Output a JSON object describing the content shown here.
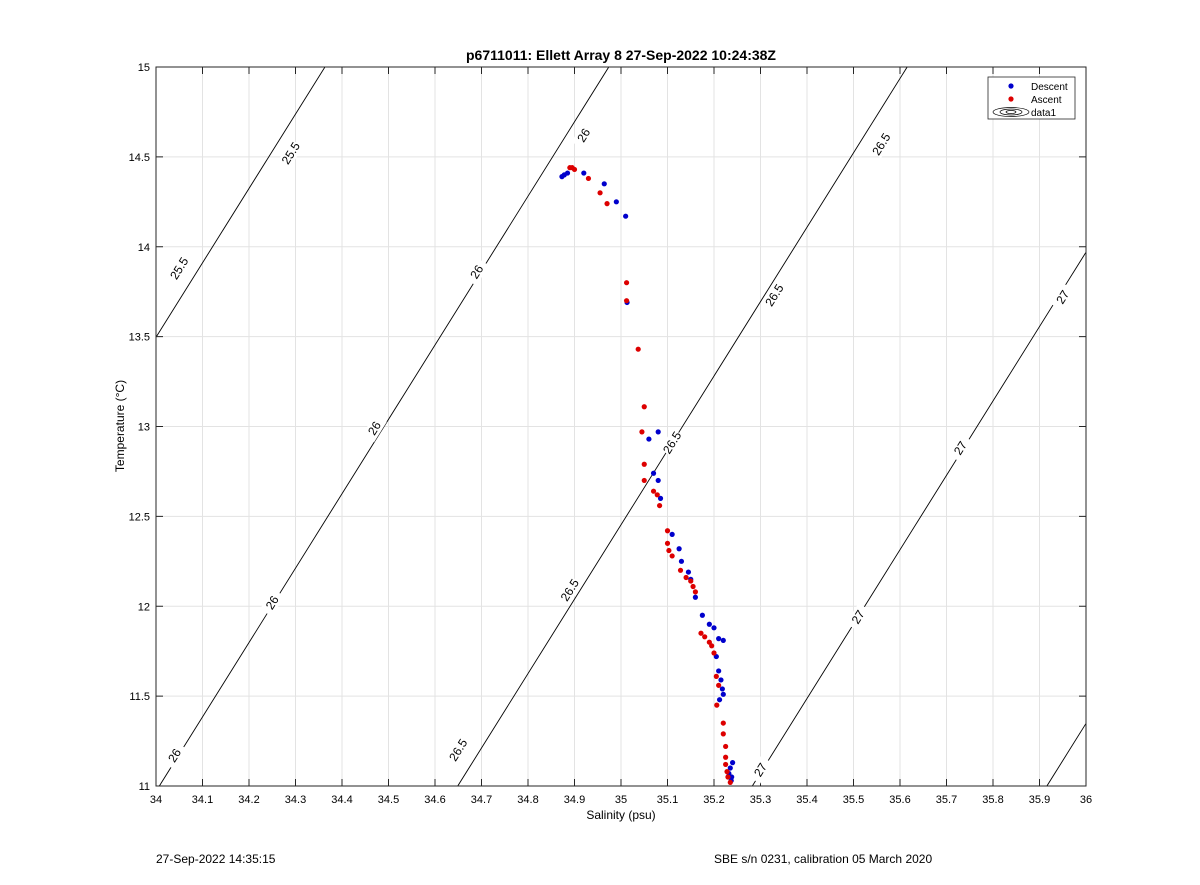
{
  "chart_data": {
    "type": "scatter",
    "title": "p6711011: Ellett Array 8 27-Sep-2022 10:24:38Z",
    "xlabel": "Salinity (psu)",
    "ylabel": "Temperature (°C)",
    "xlim": [
      34,
      36
    ],
    "ylim": [
      11,
      15
    ],
    "xticks": [
      "34",
      "34.1",
      "34.2",
      "34.3",
      "34.4",
      "34.5",
      "34.6",
      "34.7",
      "34.8",
      "34.9",
      "35",
      "35.1",
      "35.2",
      "35.3",
      "35.4",
      "35.5",
      "35.6",
      "35.7",
      "35.8",
      "35.9",
      "36"
    ],
    "yticks": [
      "11",
      "11.5",
      "12",
      "12.5",
      "13",
      "13.5",
      "14",
      "14.5",
      "15"
    ],
    "grid": true,
    "legend_position": "top-right",
    "legend": [
      "Descent",
      "Ascent",
      "data1"
    ],
    "series": [
      {
        "name": "Descent",
        "color": "#0000cc",
        "points": [
          [
            34.873,
            14.39
          ],
          [
            34.878,
            14.4
          ],
          [
            34.885,
            14.41
          ],
          [
            34.92,
            14.41
          ],
          [
            34.964,
            14.35
          ],
          [
            34.99,
            14.25
          ],
          [
            35.01,
            14.17
          ],
          [
            35.013,
            13.69
          ],
          [
            35.06,
            12.93
          ],
          [
            35.08,
            12.97
          ],
          [
            35.07,
            12.74
          ],
          [
            35.08,
            12.7
          ],
          [
            35.085,
            12.6
          ],
          [
            35.11,
            12.4
          ],
          [
            35.125,
            12.32
          ],
          [
            35.13,
            12.25
          ],
          [
            35.145,
            12.19
          ],
          [
            35.15,
            12.15
          ],
          [
            35.16,
            12.05
          ],
          [
            35.175,
            11.95
          ],
          [
            35.19,
            11.9
          ],
          [
            35.2,
            11.88
          ],
          [
            35.21,
            11.82
          ],
          [
            35.22,
            11.81
          ],
          [
            35.205,
            11.72
          ],
          [
            35.21,
            11.64
          ],
          [
            35.215,
            11.59
          ],
          [
            35.218,
            11.54
          ],
          [
            35.22,
            11.51
          ],
          [
            35.212,
            11.48
          ],
          [
            35.24,
            11.13
          ],
          [
            35.235,
            11.1
          ],
          [
            35.232,
            11.07
          ],
          [
            35.238,
            11.05
          ],
          [
            35.237,
            11.03
          ]
        ]
      },
      {
        "name": "Ascent",
        "color": "#dd0000",
        "points": [
          [
            34.89,
            14.44
          ],
          [
            34.895,
            14.44
          ],
          [
            34.9,
            14.43
          ],
          [
            34.93,
            14.38
          ],
          [
            34.955,
            14.3
          ],
          [
            34.97,
            14.24
          ],
          [
            35.012,
            13.8
          ],
          [
            35.012,
            13.7
          ],
          [
            35.037,
            13.43
          ],
          [
            35.05,
            13.11
          ],
          [
            35.045,
            12.97
          ],
          [
            35.05,
            12.79
          ],
          [
            35.05,
            12.7
          ],
          [
            35.07,
            12.64
          ],
          [
            35.078,
            12.62
          ],
          [
            35.083,
            12.56
          ],
          [
            35.1,
            12.42
          ],
          [
            35.1,
            12.35
          ],
          [
            35.103,
            12.31
          ],
          [
            35.11,
            12.28
          ],
          [
            35.128,
            12.2
          ],
          [
            35.14,
            12.16
          ],
          [
            35.15,
            12.14
          ],
          [
            35.155,
            12.11
          ],
          [
            35.16,
            12.08
          ],
          [
            35.172,
            11.85
          ],
          [
            35.18,
            11.83
          ],
          [
            35.19,
            11.8
          ],
          [
            35.195,
            11.78
          ],
          [
            35.2,
            11.74
          ],
          [
            35.205,
            11.61
          ],
          [
            35.21,
            11.56
          ],
          [
            35.206,
            11.45
          ],
          [
            35.22,
            11.35
          ],
          [
            35.22,
            11.29
          ],
          [
            35.225,
            11.22
          ],
          [
            35.225,
            11.16
          ],
          [
            35.225,
            11.12
          ],
          [
            35.228,
            11.08
          ],
          [
            35.23,
            11.05
          ],
          [
            35.235,
            11.02
          ]
        ]
      }
    ],
    "contours": [
      {
        "level": "25.5",
        "labels": [
          [
            34.29,
            14.52
          ],
          [
            34.05,
            13.88
          ]
        ]
      },
      {
        "level": "26",
        "labels": [
          [
            34.92,
            14.62
          ],
          [
            34.69,
            13.86
          ],
          [
            34.47,
            12.99
          ],
          [
            34.25,
            12.02
          ],
          [
            34.04,
            11.17
          ]
        ]
      },
      {
        "level": "26.5",
        "labels": [
          [
            35.56,
            14.57
          ],
          [
            35.33,
            13.73
          ],
          [
            35.11,
            12.91
          ],
          [
            34.89,
            12.09
          ],
          [
            34.65,
            11.2
          ]
        ]
      },
      {
        "level": "27",
        "labels": [
          [
            35.95,
            13.72
          ],
          [
            35.73,
            12.88
          ],
          [
            35.51,
            11.94
          ],
          [
            35.3,
            11.09
          ]
        ]
      }
    ]
  },
  "footer": {
    "timestamp": "27-Sep-2022 14:35:15",
    "instrument": "SBE s/n 0231, calibration 05 March 2020"
  }
}
